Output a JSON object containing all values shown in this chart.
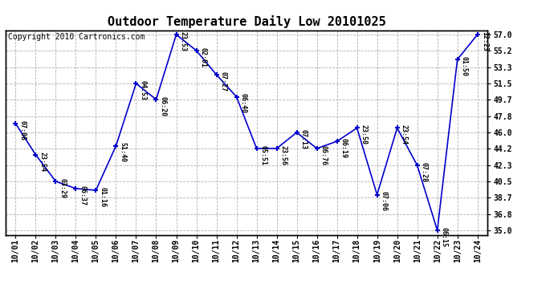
{
  "title": "Outdoor Temperature Daily Low 20101025",
  "copyright": "Copyright 2010 Cartronics.com",
  "x_labels": [
    "10/01",
    "10/02",
    "10/03",
    "10/04",
    "10/05",
    "10/06",
    "10/07",
    "10/08",
    "10/09",
    "10/10",
    "10/11",
    "10/12",
    "10/13",
    "10/14",
    "10/15",
    "10/16",
    "10/17",
    "10/18",
    "10/19",
    "10/20",
    "10/21",
    "10/22",
    "10/23",
    "10/24"
  ],
  "y_values": [
    47.0,
    43.5,
    40.5,
    39.7,
    39.5,
    44.5,
    51.5,
    49.7,
    57.0,
    55.2,
    52.5,
    50.0,
    44.2,
    44.2,
    46.0,
    44.2,
    45.0,
    46.5,
    39.0,
    46.5,
    42.3,
    35.0,
    54.2,
    57.0
  ],
  "time_labels": [
    "07:08",
    "23:54",
    "03:29",
    "06:37",
    "01:16",
    "51:40",
    "04:53",
    "06:20",
    "23:53",
    "02:01",
    "07:27",
    "06:40",
    "05:51",
    "23:56",
    "07:13",
    "06:76",
    "06:19",
    "23:50",
    "07:06",
    "23:54",
    "07:28",
    "06:15",
    "01:50",
    "12:23"
  ],
  "y_ticks": [
    35.0,
    36.8,
    38.7,
    40.5,
    42.3,
    44.2,
    46.0,
    47.8,
    49.7,
    51.5,
    53.3,
    55.2,
    57.0
  ],
  "ylim": [
    34.5,
    57.5
  ],
  "line_color": "#0000cc",
  "marker_color": "#0000cc",
  "background_color": "#ffffff",
  "grid_color": "#b0b0b0",
  "title_fontsize": 11,
  "copyright_fontsize": 7
}
